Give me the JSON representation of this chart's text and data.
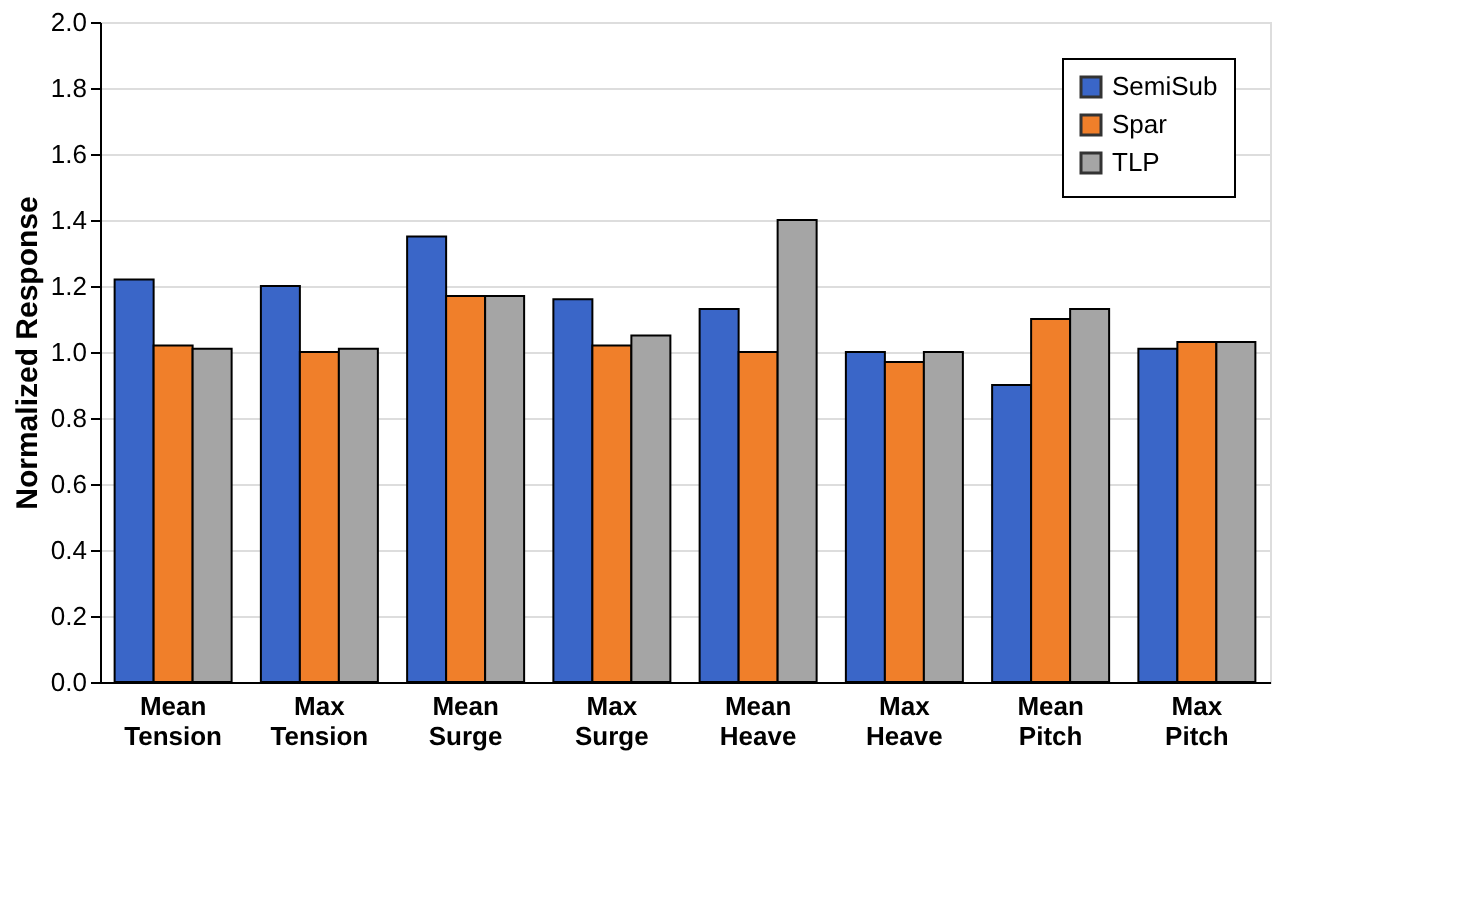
{
  "chart_data": {
    "type": "bar",
    "ylabel": "Normalized Response",
    "categories": [
      "Mean Tension",
      "Max Tension",
      "Mean Surge",
      "Max Surge",
      "Mean Heave",
      "Max Heave",
      "Mean Pitch",
      "Max Pitch"
    ],
    "series": [
      {
        "name": "SemiSub",
        "color": "#3a66c8",
        "values": [
          1.22,
          1.2,
          1.35,
          1.16,
          1.13,
          1.0,
          0.9,
          1.01
        ]
      },
      {
        "name": "Spar",
        "color": "#f07f2a",
        "values": [
          1.02,
          1.0,
          1.17,
          1.02,
          1.0,
          0.97,
          1.1,
          1.03
        ]
      },
      {
        "name": "TLP",
        "color": "#a5a5a5",
        "values": [
          1.01,
          1.01,
          1.17,
          1.05,
          1.4,
          1.0,
          1.13,
          1.03
        ]
      }
    ],
    "ylim": [
      0,
      2.0
    ],
    "yticks": [
      {
        "value": 0,
        "label": "0.0"
      },
      {
        "value": 0.2,
        "label": "0.2"
      },
      {
        "value": 0.4,
        "label": "0.4"
      },
      {
        "value": 0.6,
        "label": "0.6"
      },
      {
        "value": 0.8,
        "label": "0.8"
      },
      {
        "value": 1.0,
        "label": "1.0"
      },
      {
        "value": 1.2,
        "label": "1.2"
      },
      {
        "value": 1.4,
        "label": "1.4"
      },
      {
        "value": 1.6,
        "label": "1.6"
      },
      {
        "value": 1.8,
        "label": "1.8"
      },
      {
        "value": 2.0,
        "label": "2.0"
      }
    ],
    "grid": "y",
    "legend": "top right"
  }
}
